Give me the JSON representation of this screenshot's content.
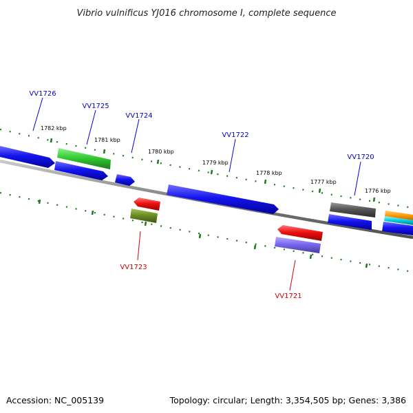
{
  "title": "Vibrio vulnificus YJ016 chromosome I, complete sequence",
  "footer": {
    "accession": "Accession: NC_005139",
    "summary": "Topology: circular; Length: 3,354,505 bp; Genes: 3,386"
  },
  "ticks": [
    {
      "label": "1782 kbp"
    },
    {
      "label": "1781 kbp"
    },
    {
      "label": "1780 kbp"
    },
    {
      "label": "1779 kbp"
    },
    {
      "label": "1778 kbp"
    },
    {
      "label": "1777 kbp"
    },
    {
      "label": "1776 kbp"
    }
  ],
  "genes": [
    {
      "label": "VV1726",
      "color": "#0000cc",
      "strand": "forward"
    },
    {
      "label": "VV1725",
      "color": "#0000cc",
      "strand": "forward"
    },
    {
      "label": "VV1724",
      "color": "#0000cc",
      "strand": "forward"
    },
    {
      "label": "VV1723",
      "color": "#cc0000",
      "strand": "reverse"
    },
    {
      "label": "VV1722",
      "color": "#0000cc",
      "strand": "forward"
    },
    {
      "label": "VV1721",
      "color": "#cc0000",
      "strand": "reverse"
    },
    {
      "label": "VV1720",
      "color": "#0000cc",
      "strand": "forward"
    }
  ],
  "feature_colors": {
    "cds_forward": "#1414ee",
    "cds_reverse": "#ee1111",
    "cog_green": "#33cc33",
    "cog_olive": "#6b8e23",
    "cog_purple": "#7b68ee",
    "cog_gray": "#555555",
    "cog_orange": "#ff9900",
    "cog_cyan": "#00ccdd",
    "backbone": "#808080",
    "tick": "#1a7a1a"
  }
}
